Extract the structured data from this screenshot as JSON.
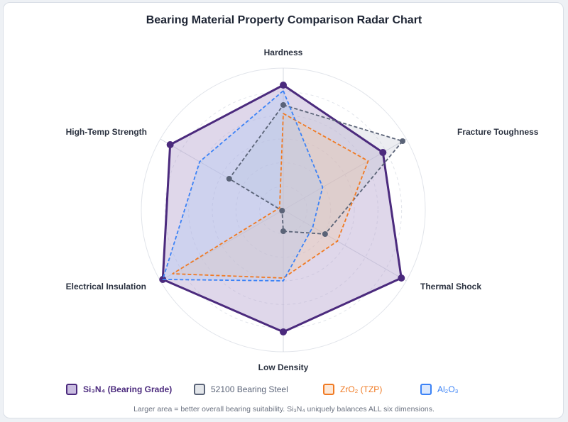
{
  "chart_data": {
    "type": "radar",
    "title": "Bearing Material Property Comparison Radar Chart",
    "axes": [
      "Hardness",
      "Fracture Toughness",
      "Thermal Shock",
      "Low Density",
      "Electrical Insulation",
      "High-Temp Strength"
    ],
    "rlim": [
      0,
      10
    ],
    "grid_rings": 6,
    "legend_position": "bottom",
    "series": [
      {
        "name": "Si₃N₄ (Bearing Grade)",
        "values": [
          8.8,
          8.1,
          9.6,
          8.6,
          9.8,
          9.2
        ],
        "color": "#4b2a7d",
        "fill": "#b7a6d1",
        "line": "solid",
        "bold": true
      },
      {
        "name": "52100 Bearing Steel",
        "values": [
          7.4,
          9.7,
          3.4,
          1.5,
          0.1,
          4.4
        ],
        "color": "#5a6377",
        "fill": "#bfc5cf",
        "line": "dashed",
        "bold": false
      },
      {
        "name": "ZrO₂ (TZP)",
        "values": [
          6.8,
          6.9,
          4.4,
          4.8,
          9.0,
          0.3
        ],
        "color": "#f07a23",
        "fill": "#f6c69c",
        "line": "dashed",
        "bold": false
      },
      {
        "name": "Al₂O₃",
        "values": [
          8.4,
          3.2,
          2.4,
          5.0,
          9.8,
          6.8
        ],
        "color": "#3b82f6",
        "fill": "#aac8f7",
        "line": "dashed",
        "bold": false
      }
    ]
  },
  "footnote": "Larger area = better overall bearing suitability. Si₃N₄ uniquely balances ALL six dimensions."
}
